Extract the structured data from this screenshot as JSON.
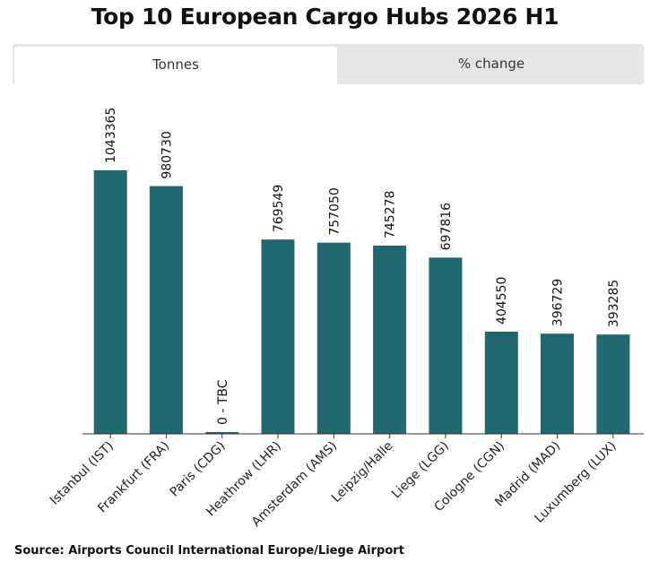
{
  "title": "Top 10 European Cargo Hubs 2026 H1",
  "tabs": [
    {
      "label": "Tonnes",
      "active": true
    },
    {
      "label": "% change",
      "active": false
    }
  ],
  "colors": {
    "bar": "#216870",
    "axis": "#333333",
    "tab_bg": "#e6e6e6"
  },
  "source": "Source: Airports Council International Europe/Liege Airport",
  "chart_data": {
    "type": "bar",
    "categories": [
      "Istanbul (IST)",
      "Frankfurt (FRA)",
      "Paris (CDG)",
      "Heathrow (LHR)",
      "Amsterdam (AMS)",
      "Leipzig/Halle",
      "Liege (LGG)",
      "Cologne (CGN)",
      "Madrid (MAD)",
      "Luxumberg (LUX)"
    ],
    "values": [
      1043365,
      980730,
      0,
      769549,
      757050,
      745278,
      697816,
      404550,
      396729,
      393285
    ],
    "data_labels": [
      "1043365",
      "980730",
      "0 - TBC",
      "769549",
      "757050",
      "745278",
      "697816",
      "404550",
      "396729",
      "393285"
    ],
    "ylim": [
      0,
      1043365
    ],
    "grid": false,
    "title": "",
    "xlabel": "",
    "ylabel": ""
  }
}
